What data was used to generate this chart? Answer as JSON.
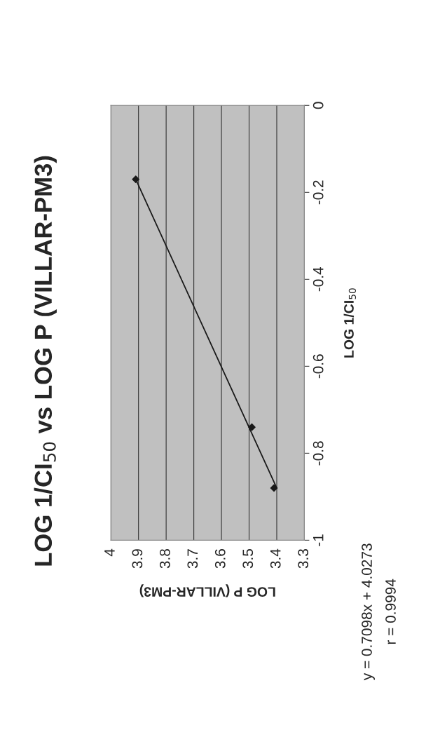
{
  "chart_data": {
    "type": "scatter",
    "title": "LOG 1/CI$_{50}$ vs LOG P (VILLAR-PM3)",
    "xlabel": "LOG P (VILLAR-PM3)",
    "ylabel": "LOG 1/CI$_{50}$",
    "x": [
      3.91,
      3.49,
      3.41
    ],
    "series": [
      {
        "color": "#1a1a1a",
        "values": [
          -0.17,
          -0.74,
          -0.88
        ],
        "marker": "diamond"
      },
      {
        "type": "line",
        "color": "#1a1a1a",
        "x": [
          3.4,
          3.91
        ],
        "values": [
          -0.88,
          -0.17
        ],
        "marker": "none",
        "line_style": "solid"
      }
    ],
    "xlim": [
      4,
      3.3
    ],
    "xticks": [
      4,
      3.9,
      3.8,
      3.7,
      3.6,
      3.5,
      3.4,
      3.3
    ],
    "ylim": [
      -1,
      0
    ],
    "yticks": [
      -1,
      -0.8,
      -0.6,
      -0.4,
      -0.2,
      0
    ],
    "grid": "x",
    "annotations": [
      "y = 0.7098x + 4.0273",
      "r = 0.9994"
    ]
  }
}
